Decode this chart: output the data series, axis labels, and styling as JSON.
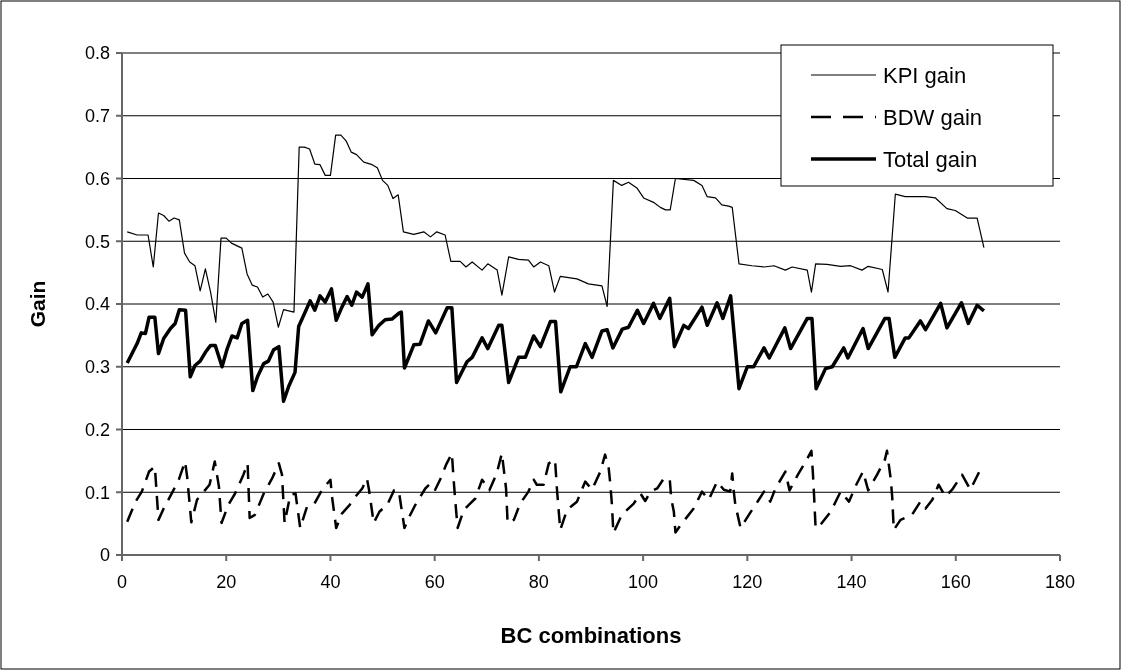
{
  "chart_data": {
    "type": "line",
    "xlabel": "BC combinations",
    "ylabel": "Gain",
    "xlim": [
      0,
      180
    ],
    "xticks": [
      0,
      20,
      40,
      60,
      80,
      100,
      120,
      140,
      160,
      180
    ],
    "ylim": [
      0,
      0.8
    ],
    "yticks": [
      0,
      0.1,
      0.2,
      0.3,
      0.4,
      0.5,
      0.6,
      0.7,
      0.8
    ],
    "grid": "y",
    "legend": "top right",
    "marker": "none",
    "series": [
      {
        "name": "KPI gain",
        "color": "#000000",
        "line_style": "solid",
        "x": [
          1,
          2.9,
          5,
          6,
          7,
          8,
          9,
          10,
          11,
          12,
          13,
          14,
          15,
          16,
          17,
          18,
          19,
          20,
          21,
          23,
          24,
          25,
          26,
          27,
          28,
          29,
          30,
          31,
          33,
          34,
          35,
          36,
          37,
          38,
          39,
          40,
          41,
          42,
          43,
          44,
          45,
          46.4,
          48,
          49,
          50,
          51,
          52,
          53,
          54,
          56,
          57.9,
          59.2,
          60.4,
          62,
          63.1,
          64.9,
          66,
          67.2,
          69.1,
          70.2,
          72,
          72.9,
          74.2,
          76.1,
          78,
          79,
          80.3,
          81.9,
          83,
          84.1,
          87.3,
          89.5,
          92.1,
          93.1,
          94.3,
          95.9,
          97.2,
          98.8,
          100.1,
          102,
          103.3,
          104.3,
          105.2,
          106.2,
          109.7,
          111.3,
          112.3,
          113.9,
          115.1,
          116.4,
          117.1,
          118.4,
          120.9,
          123.2,
          125.1,
          127.3,
          128.6,
          131.5,
          132.3,
          133.1,
          135.3,
          137.9,
          139.8,
          142,
          143.2,
          145.9,
          147,
          148.4,
          150.3,
          154.2,
          156.1,
          158.3,
          159.9,
          162.2,
          164.1,
          165.4
        ],
        "values": [
          0.515,
          0.51,
          0.51,
          0.459,
          0.545,
          0.541,
          0.532,
          0.537,
          0.534,
          0.481,
          0.467,
          0.461,
          0.421,
          0.456,
          0.419,
          0.371,
          0.505,
          0.505,
          0.497,
          0.489,
          0.448,
          0.43,
          0.427,
          0.411,
          0.416,
          0.403,
          0.363,
          0.391,
          0.387,
          0.65,
          0.65,
          0.647,
          0.623,
          0.622,
          0.605,
          0.605,
          0.669,
          0.669,
          0.66,
          0.642,
          0.638,
          0.626,
          0.622,
          0.617,
          0.597,
          0.589,
          0.568,
          0.574,
          0.515,
          0.511,
          0.515,
          0.507,
          0.515,
          0.51,
          0.468,
          0.468,
          0.459,
          0.467,
          0.454,
          0.464,
          0.454,
          0.414,
          0.475,
          0.471,
          0.47,
          0.459,
          0.467,
          0.461,
          0.419,
          0.444,
          0.44,
          0.432,
          0.429,
          0.396,
          0.597,
          0.589,
          0.594,
          0.585,
          0.569,
          0.562,
          0.554,
          0.55,
          0.55,
          0.6,
          0.597,
          0.589,
          0.571,
          0.569,
          0.558,
          0.556,
          0.554,
          0.464,
          0.461,
          0.459,
          0.461,
          0.454,
          0.459,
          0.454,
          0.419,
          0.464,
          0.463,
          0.46,
          0.461,
          0.454,
          0.46,
          0.455,
          0.419,
          0.575,
          0.571,
          0.571,
          0.569,
          0.552,
          0.549,
          0.537,
          0.537,
          0.49
        ]
      },
      {
        "name": "BDW gain",
        "color": "#000000",
        "line_style": "dashed",
        "x": [
          1,
          2.6,
          3.8,
          5.2,
          6.3,
          7,
          8,
          9.6,
          10.9,
          12.1,
          12.5,
          13.3,
          14.4,
          15.7,
          16.8,
          17.8,
          18.6,
          19.1,
          20.4,
          21.7,
          23.3,
          24.1,
          24.5,
          25.5,
          27.2,
          28.8,
          30.1,
          30.7,
          31.2,
          32.3,
          33.3,
          34.2,
          35.5,
          36.8,
          38.4,
          40,
          40.3,
          41.1,
          42.2,
          43.7,
          44.8,
          46.1,
          47,
          47.4,
          48.3,
          49.4,
          50.9,
          52.2,
          53.1,
          54.2,
          55,
          56.3,
          58.2,
          59.2,
          60.1,
          61.1,
          62.2,
          63.3,
          63.6,
          63.9,
          64.4,
          65.6,
          66.8,
          67.8,
          69.1,
          70.5,
          71.9,
          72.9,
          73.2,
          73.7,
          74,
          75.2,
          76.4,
          78,
          79,
          79.6,
          80.9,
          81.9,
          83.1,
          83.5,
          84.1,
          85.4,
          87.3,
          88.9,
          90.2,
          91.8,
          92.7,
          93.4,
          93.7,
          94,
          94.3,
          95.9,
          98.2,
          99.5,
          100.4,
          101.4,
          102.7,
          103.9,
          105.1,
          105.4,
          105.9,
          106.2,
          107.5,
          109.7,
          111.3,
          112.6,
          114.2,
          115.5,
          116.7,
          117.1,
          117.4,
          117.7,
          118.7,
          120.6,
          122.2,
          123.2,
          124.4,
          125.4,
          127.3,
          128.1,
          129.7,
          131.2,
          132.3,
          132.6,
          132.8,
          133.1,
          134,
          136,
          137.9,
          139.5,
          140.9,
          142.2,
          143.2,
          144.9,
          146.4,
          146.8,
          147.5,
          147.8,
          148.1,
          149.4,
          151.6,
          153.2,
          154.2,
          155.5,
          156.7,
          158,
          159.3,
          161.2,
          162.8,
          164.7
        ],
        "values": [
          0.053,
          0.085,
          0.101,
          0.133,
          0.141,
          0.056,
          0.074,
          0.099,
          0.12,
          0.149,
          0.125,
          0.052,
          0.088,
          0.101,
          0.112,
          0.149,
          0.109,
          0.051,
          0.08,
          0.098,
          0.128,
          0.146,
          0.059,
          0.064,
          0.098,
          0.122,
          0.146,
          0.128,
          0.051,
          0.096,
          0.098,
          0.043,
          0.077,
          0.08,
          0.104,
          0.12,
          0.093,
          0.043,
          0.066,
          0.08,
          0.093,
          0.106,
          0.122,
          0.104,
          0.051,
          0.069,
          0.08,
          0.103,
          0.103,
          0.043,
          0.059,
          0.08,
          0.106,
          0.114,
          0.104,
          0.121,
          0.144,
          0.162,
          0.125,
          0.092,
          0.043,
          0.072,
          0.082,
          0.09,
          0.12,
          0.103,
          0.13,
          0.162,
          0.141,
          0.106,
          0.051,
          0.056,
          0.082,
          0.101,
          0.12,
          0.112,
          0.112,
          0.146,
          0.152,
          0.101,
          0.04,
          0.072,
          0.085,
          0.117,
          0.104,
          0.133,
          0.16,
          0.138,
          0.114,
          0.082,
          0.035,
          0.064,
          0.082,
          0.098,
          0.086,
          0.101,
          0.106,
          0.121,
          0.122,
          0.09,
          0.069,
          0.036,
          0.051,
          0.074,
          0.101,
          0.088,
          0.117,
          0.104,
          0.101,
          0.13,
          0.101,
          0.08,
          0.043,
          0.068,
          0.088,
          0.101,
          0.085,
          0.106,
          0.133,
          0.103,
          0.128,
          0.149,
          0.166,
          0.128,
          0.096,
          0.043,
          0.048,
          0.069,
          0.101,
          0.085,
          0.112,
          0.133,
          0.103,
          0.128,
          0.152,
          0.166,
          0.122,
          0.093,
          0.04,
          0.056,
          0.064,
          0.085,
          0.074,
          0.088,
          0.112,
          0.093,
          0.104,
          0.128,
          0.104,
          0.136
        ]
      },
      {
        "name": "Total gain",
        "color": "#000000",
        "line_style": "solid",
        "x": [
          1,
          2.9,
          3.7,
          4.5,
          5.2,
          6.3,
          7,
          8,
          9.3,
          10.2,
          11,
          12.2,
          13.1,
          14,
          15,
          16,
          17,
          17.9,
          19.2,
          20.2,
          21.1,
          22.1,
          23,
          24.1,
          25.1,
          26,
          27.2,
          28.1,
          29.1,
          30.1,
          31,
          32,
          33.2,
          33.9,
          35.2,
          36.1,
          37,
          38,
          39,
          40.2,
          41.1,
          42.2,
          43.2,
          44.1,
          45,
          46.1,
          47.2,
          48,
          49.3,
          50.5,
          51.8,
          53.1,
          53.6,
          54.2,
          56,
          57.2,
          58.8,
          60.2,
          62.4,
          63.3,
          64.2,
          66.2,
          67.2,
          69.1,
          70.2,
          72.3,
          72.9,
          74.2,
          76.1,
          77.4,
          79,
          80.3,
          82.2,
          83.2,
          84.2,
          86,
          87.2,
          88.9,
          90.2,
          92.1,
          93.1,
          94.2,
          96,
          97.2,
          98.9,
          100.1,
          102,
          103.2,
          105.1,
          106,
          107.8,
          108.7,
          111.3,
          112.3,
          114.2,
          115.3,
          116.8,
          118.4,
          120,
          121.2,
          123.2,
          124.2,
          127.2,
          128.3,
          131.5,
          132.4,
          133.2,
          135,
          136.3,
          138.5,
          139.3,
          142.2,
          143.2,
          146.4,
          147.2,
          148.3,
          150.3,
          151,
          153.2,
          154.2,
          157.1,
          158.3,
          161.1,
          162.4,
          164.1,
          165.4
        ],
        "values": [
          0.306,
          0.337,
          0.354,
          0.353,
          0.379,
          0.379,
          0.321,
          0.345,
          0.361,
          0.369,
          0.391,
          0.39,
          0.284,
          0.302,
          0.309,
          0.323,
          0.334,
          0.334,
          0.3,
          0.329,
          0.349,
          0.346,
          0.369,
          0.374,
          0.262,
          0.284,
          0.305,
          0.309,
          0.327,
          0.332,
          0.245,
          0.269,
          0.291,
          0.364,
          0.388,
          0.405,
          0.39,
          0.413,
          0.403,
          0.424,
          0.374,
          0.395,
          0.412,
          0.398,
          0.419,
          0.411,
          0.432,
          0.351,
          0.366,
          0.375,
          0.376,
          0.385,
          0.387,
          0.298,
          0.335,
          0.336,
          0.373,
          0.354,
          0.394,
          0.394,
          0.275,
          0.308,
          0.315,
          0.346,
          0.329,
          0.366,
          0.366,
          0.275,
          0.315,
          0.315,
          0.349,
          0.332,
          0.372,
          0.372,
          0.26,
          0.3,
          0.3,
          0.337,
          0.315,
          0.357,
          0.359,
          0.33,
          0.36,
          0.363,
          0.39,
          0.369,
          0.401,
          0.377,
          0.409,
          0.332,
          0.366,
          0.361,
          0.395,
          0.366,
          0.402,
          0.377,
          0.413,
          0.265,
          0.3,
          0.3,
          0.33,
          0.314,
          0.362,
          0.329,
          0.377,
          0.377,
          0.265,
          0.297,
          0.3,
          0.33,
          0.314,
          0.361,
          0.329,
          0.377,
          0.377,
          0.315,
          0.346,
          0.346,
          0.373,
          0.359,
          0.401,
          0.362,
          0.402,
          0.369,
          0.398,
          0.389
        ]
      }
    ]
  }
}
